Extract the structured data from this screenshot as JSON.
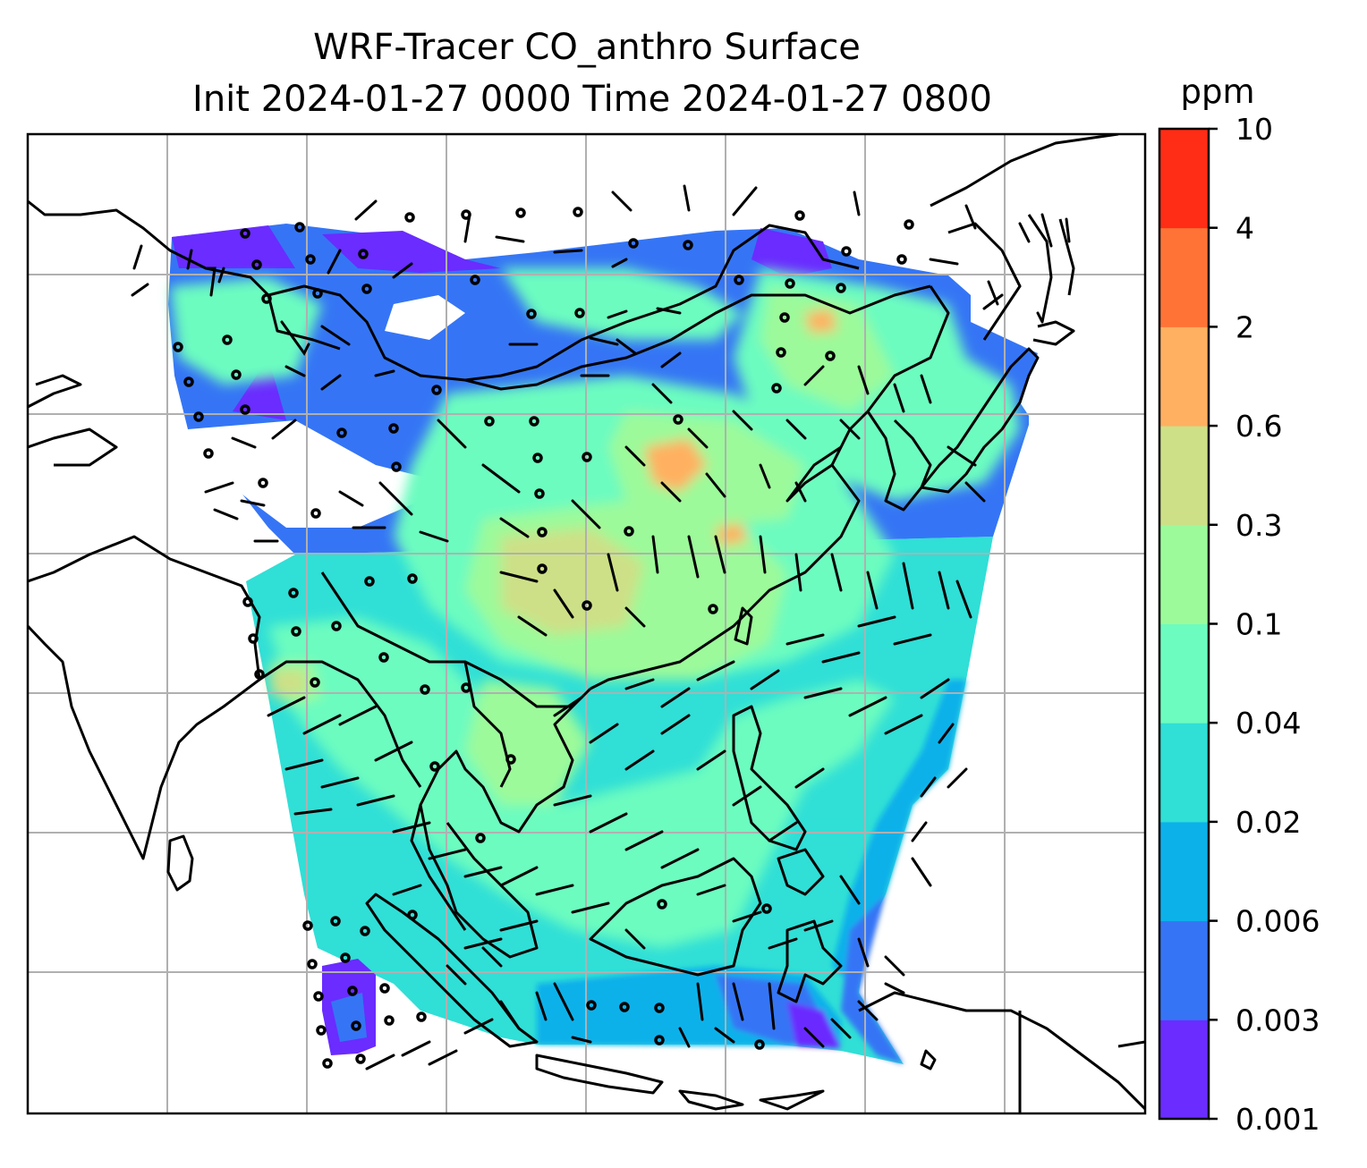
{
  "title": {
    "line1": "WRF-Tracer CO_anthro Surface",
    "line2": "Init 2024-01-27 0000 Time 2024-01-27 0800"
  },
  "colorbar": {
    "unit": "ppm",
    "tick_labels": [
      "10",
      "4",
      "2",
      "0.6",
      "0.3",
      "0.1",
      "0.04",
      "0.02",
      "0.006",
      "0.003",
      "0.001"
    ],
    "colors_bottom_to_top": [
      "#6a2cff",
      "#3575f5",
      "#0cb1ea",
      "#30dfd6",
      "#6cfcc0",
      "#9cfa9a",
      "#cde087",
      "#ffb060",
      "#ff7436",
      "#ff2c16"
    ]
  },
  "map": {
    "gridlines": true,
    "layers": [
      "coastlines",
      "country-borders",
      "co-concentration-fill",
      "wind-barbs"
    ],
    "colors": {
      "gridline": "#b0b0b0",
      "coastline": "#000000",
      "frame": "#000000"
    }
  }
}
